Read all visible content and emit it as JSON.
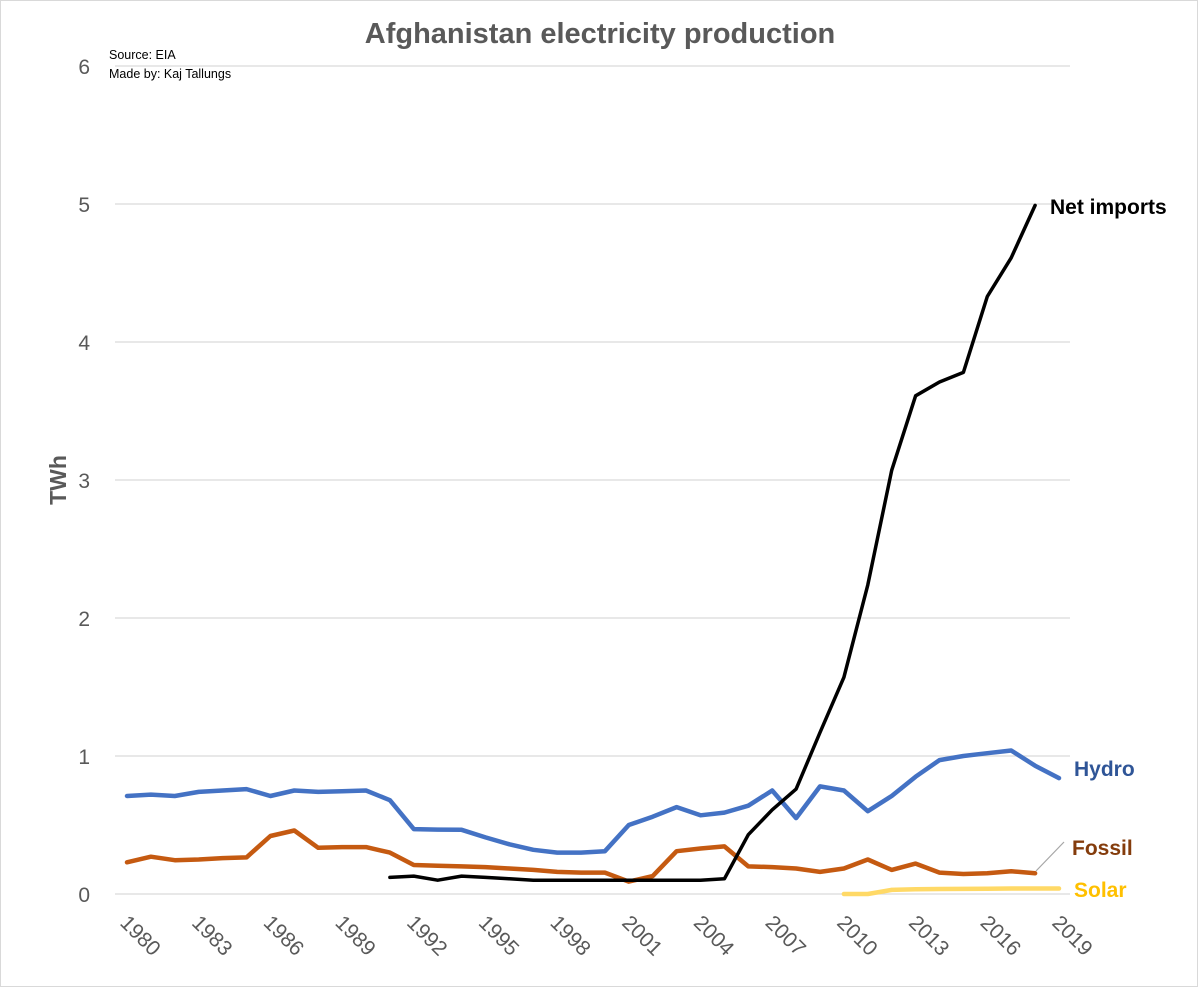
{
  "chart_data": {
    "type": "line",
    "title": "Afghanistan electricity production",
    "source_note": "Source: EIA",
    "credit_note": "Made by: Kaj Tallungs",
    "xlabel": "",
    "ylabel": "TWh",
    "ylim": [
      0,
      6
    ],
    "yticks": [
      "0",
      "1",
      "2",
      "3",
      "4",
      "5",
      "6"
    ],
    "xlim": [
      1980,
      2019
    ],
    "xticks": [
      "1980",
      "1983",
      "1986",
      "1989",
      "1992",
      "1995",
      "1998",
      "2001",
      "2004",
      "2007",
      "2010",
      "2013",
      "2016",
      "2019"
    ],
    "grid": true,
    "series": [
      {
        "name": "Hydro",
        "color": "#4472c4",
        "label_color": "#2f5597",
        "x": [
          1980,
          1981,
          1982,
          1983,
          1984,
          1985,
          1986,
          1987,
          1988,
          1989,
          1990,
          1991,
          1992,
          1993,
          1994,
          1995,
          1996,
          1997,
          1998,
          1999,
          2000,
          2001,
          2002,
          2003,
          2004,
          2005,
          2006,
          2007,
          2008,
          2009,
          2010,
          2011,
          2012,
          2013,
          2014,
          2015,
          2016,
          2017,
          2018,
          2019
        ],
        "values": [
          0.71,
          0.72,
          0.71,
          0.74,
          0.75,
          0.76,
          0.71,
          0.75,
          0.74,
          0.745,
          0.75,
          0.68,
          0.47,
          0.467,
          0.465,
          0.41,
          0.36,
          0.32,
          0.3,
          0.3,
          0.31,
          0.5,
          0.56,
          0.63,
          0.57,
          0.59,
          0.64,
          0.75,
          0.55,
          0.78,
          0.75,
          0.6,
          0.71,
          0.85,
          0.97,
          1.0,
          1.02,
          1.04,
          0.93,
          0.84
        ]
      },
      {
        "name": "Fossil",
        "color": "#c55a11",
        "label_color": "#843c0c",
        "x": [
          1980,
          1981,
          1982,
          1983,
          1984,
          1985,
          1986,
          1987,
          1988,
          1989,
          1990,
          1991,
          1992,
          1993,
          1994,
          1995,
          1996,
          1997,
          1998,
          1999,
          2000,
          2001,
          2002,
          2003,
          2004,
          2005,
          2006,
          2007,
          2008,
          2009,
          2010,
          2011,
          2012,
          2013,
          2014,
          2015,
          2016,
          2017,
          2018
        ],
        "values": [
          0.23,
          0.27,
          0.245,
          0.25,
          0.26,
          0.265,
          0.42,
          0.46,
          0.335,
          0.34,
          0.34,
          0.3,
          0.21,
          0.205,
          0.2,
          0.195,
          0.185,
          0.175,
          0.16,
          0.155,
          0.155,
          0.09,
          0.13,
          0.31,
          0.33,
          0.345,
          0.2,
          0.195,
          0.185,
          0.16,
          0.185,
          0.25,
          0.175,
          0.22,
          0.155,
          0.145,
          0.15,
          0.165,
          0.15
        ]
      },
      {
        "name": "Net imports",
        "color": "#000000",
        "label_color": "#000000",
        "x": [
          1991,
          1992,
          1993,
          1994,
          1995,
          1996,
          1997,
          1998,
          1999,
          2000,
          2001,
          2002,
          2003,
          2004,
          2005,
          2006,
          2007,
          2008,
          2009,
          2010,
          2011,
          2012,
          2013,
          2014,
          2015,
          2016,
          2017,
          2018
        ],
        "values": [
          0.12,
          0.13,
          0.1,
          0.13,
          0.12,
          0.11,
          0.1,
          0.1,
          0.1,
          0.1,
          0.1,
          0.1,
          0.1,
          0.1,
          0.11,
          0.43,
          0.61,
          0.76,
          1.17,
          1.57,
          2.24,
          3.07,
          3.61,
          3.71,
          3.78,
          4.33,
          4.61,
          4.99
        ]
      },
      {
        "name": "Solar",
        "color": "#ffd966",
        "label_color": "#ffc000",
        "x": [
          2010,
          2011,
          2012,
          2013,
          2014,
          2015,
          2016,
          2017,
          2018,
          2019
        ],
        "values": [
          0.0,
          0.0,
          0.03,
          0.035,
          0.036,
          0.037,
          0.038,
          0.04,
          0.04,
          0.04
        ]
      }
    ]
  }
}
